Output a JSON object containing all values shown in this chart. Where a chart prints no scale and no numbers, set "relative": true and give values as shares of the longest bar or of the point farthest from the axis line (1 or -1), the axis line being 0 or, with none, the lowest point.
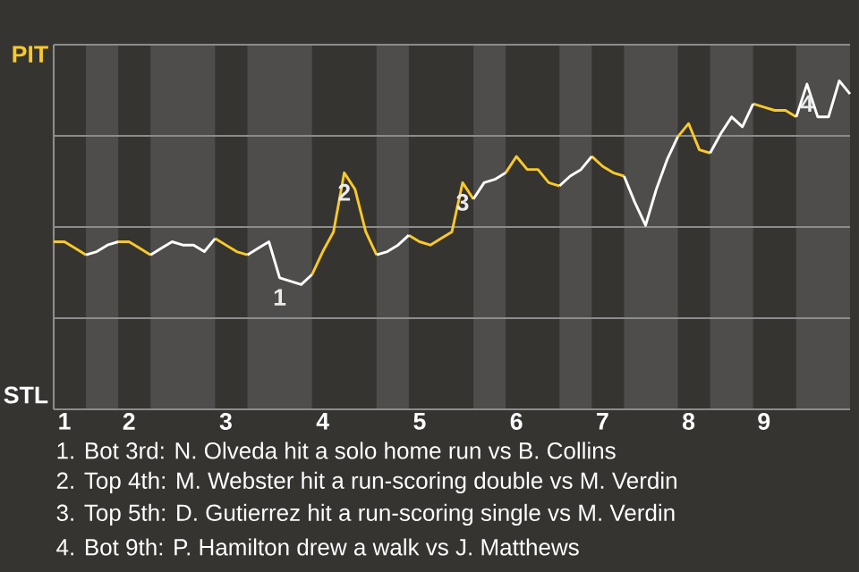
{
  "chart_data": {
    "type": "line",
    "relative": true,
    "grid": "y",
    "categories": [
      null,
      "1",
      null,
      null,
      null,
      null,
      null,
      "2",
      null,
      null,
      null,
      null,
      null,
      null,
      null,
      null,
      "3",
      null,
      null,
      null,
      null,
      null,
      null,
      null,
      null,
      "4",
      null,
      null,
      null,
      null,
      null,
      null,
      null,
      null,
      "5",
      null,
      null,
      null,
      null,
      null,
      null,
      null,
      null,
      "6",
      null,
      null,
      null,
      null,
      null,
      null,
      null,
      "7",
      null,
      null,
      null,
      null,
      null,
      null,
      null,
      "8",
      null,
      null,
      null,
      null,
      null,
      null,
      "9",
      null,
      null,
      null,
      null,
      null,
      null,
      null,
      null
    ],
    "series": [
      {
        "color": "#f9c929",
        "values": [
          0.51,
          0.51,
          0.49,
          0.47,
          null,
          null,
          0.51,
          0.51,
          0.49,
          0.47,
          null,
          null,
          null,
          null,
          null,
          0.52,
          0.5,
          0.48,
          0.47,
          null,
          null,
          null,
          null,
          null,
          0.41,
          0.48,
          0.54,
          0.72,
          0.67,
          0.54,
          0.47,
          null,
          null,
          0.53,
          0.51,
          0.5,
          0.52,
          0.54,
          0.69,
          0.64,
          null,
          null,
          0.72,
          0.77,
          0.73,
          0.73,
          0.69,
          0.68,
          null,
          null,
          0.77,
          0.74,
          0.72,
          0.71,
          null,
          null,
          null,
          null,
          0.83,
          0.87,
          0.79,
          0.78,
          null,
          null,
          null,
          0.93,
          0.92,
          0.91,
          0.91,
          0.89,
          null,
          null,
          null,
          null,
          null
        ]
      },
      {
        "color": "#ffffff",
        "values": [
          null,
          null,
          null,
          0.47,
          0.48,
          0.5,
          0.51,
          null,
          null,
          0.47,
          0.49,
          0.51,
          0.5,
          0.5,
          0.48,
          0.52,
          null,
          null,
          0.47,
          0.49,
          0.51,
          0.4,
          0.39,
          0.38,
          0.41,
          null,
          null,
          null,
          null,
          null,
          0.47,
          0.48,
          0.5,
          0.53,
          null,
          null,
          null,
          null,
          null,
          0.64,
          0.69,
          0.7,
          0.72,
          null,
          null,
          null,
          null,
          0.68,
          0.71,
          0.73,
          0.77,
          null,
          null,
          0.71,
          0.63,
          0.56,
          0.67,
          0.76,
          0.83,
          null,
          null,
          0.78,
          0.84,
          0.89,
          0.86,
          0.93,
          null,
          null,
          null,
          0.89,
          0.99,
          0.89,
          0.89,
          1,
          0.96
        ]
      }
    ],
    "annotations": [
      "PIT",
      "STL",
      {
        "text": "1",
        "y": 0.4
      },
      {
        "text": "2",
        "y": 0.72
      },
      {
        "text": "3",
        "y": 0.69
      },
      {
        "text": "4",
        "y": 0.99
      },
      "1. Bot 3rd: N. Olveda hit a solo home run vs B. Collins",
      "2. Top 4th: M. Webster hit a run-scoring double vs M. Verdin",
      "3. Top 5th: D. Gutierrez hit a run-scoring single vs M. Verdin",
      "4. Bot 9th: P. Hamilton drew a walk vs J. Matthews"
    ]
  }
}
